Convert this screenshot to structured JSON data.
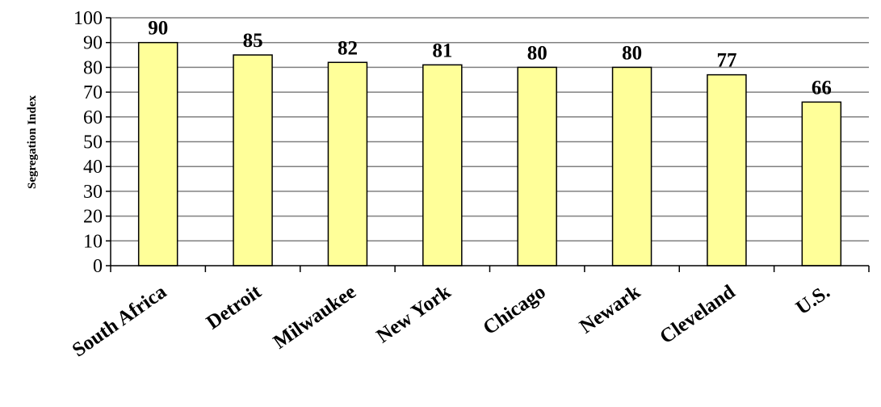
{
  "chart_data": {
    "type": "bar",
    "title": "",
    "xlabel": "",
    "ylabel": "Segregation Index",
    "categories": [
      "South Africa",
      "Detroit",
      "Milwaukee",
      "New York",
      "Chicago",
      "Newark",
      "Cleveland",
      "U.S."
    ],
    "values": [
      90,
      85,
      82,
      81,
      80,
      80,
      77,
      66
    ],
    "ylim": [
      0,
      100
    ],
    "yticks": [
      0,
      10,
      20,
      30,
      40,
      50,
      60,
      70,
      80,
      90,
      100
    ],
    "grid": true,
    "legend": "none",
    "data_labels": true,
    "colors": {
      "bar_fill": "#FFFF99",
      "bar_stroke": "#000000",
      "gridline": "#808080",
      "axis": "#000000"
    }
  }
}
